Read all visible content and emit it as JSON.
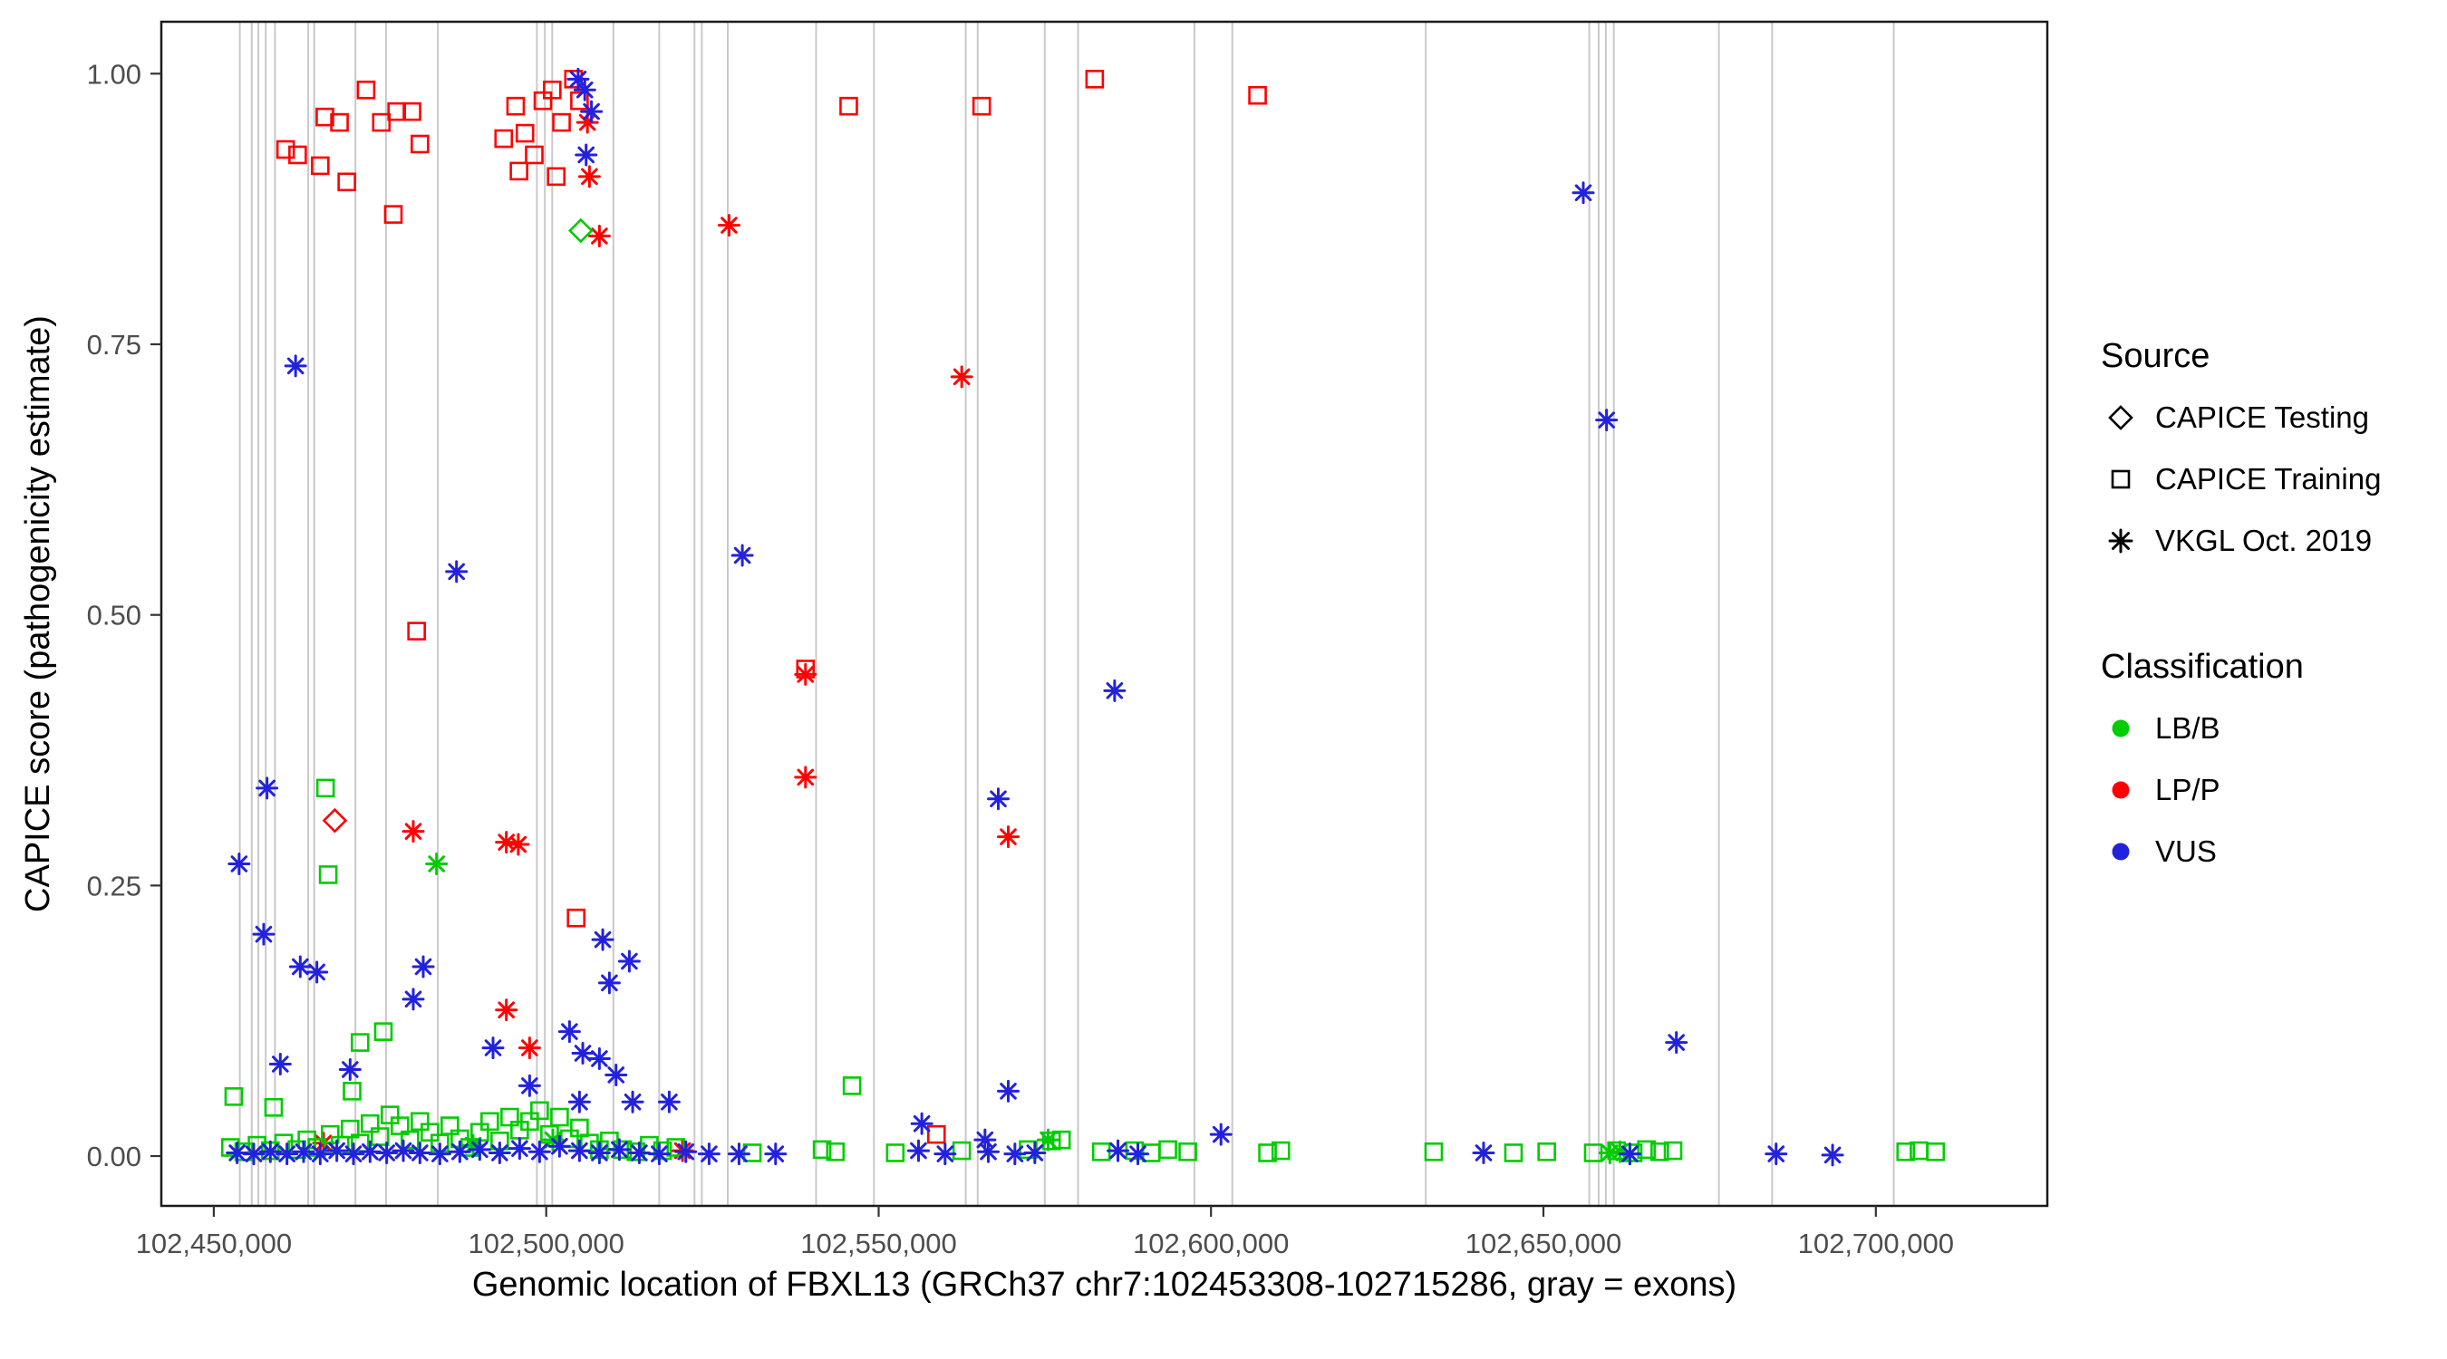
{
  "chart_data": {
    "type": "scatter",
    "title": "",
    "xlabel": "Genomic location of FBXL13 (GRCh37 chr7:102453308-102715286, gray = exons)",
    "ylabel": "CAPICE score (pathogenicity estimate)",
    "xlim": [
      102442100,
      102725800
    ],
    "ylim": [
      -0.046,
      1.048
    ],
    "x_ticks": [
      102450000,
      102500000,
      102550000,
      102600000,
      102650000,
      102700000
    ],
    "x_tick_labels": [
      "102,450,000",
      "102,500,000",
      "102,550,000",
      "102,600,000",
      "102,650,000",
      "102,700,000"
    ],
    "y_ticks": [
      0,
      0.25,
      0.5,
      0.75,
      1
    ],
    "y_tick_labels": [
      "0.00",
      "0.25",
      "0.50",
      "0.75",
      "1.00"
    ],
    "grid": false,
    "legend_position": "right",
    "exon_note": "gray vertical lines = exons",
    "exon_color": "#C9C9C9",
    "colors": {
      "g": "#00CC00",
      "r": "#FF0000",
      "b": "#2222DD"
    },
    "class_codes": {
      "g": "LB/B",
      "r": "LP/P",
      "b": "VUS"
    },
    "shape_codes": {
      "s": "CAPICE Training",
      "d": "CAPICE Testing",
      "a": "VKGL Oct. 2019"
    },
    "point_format": [
      "genomic_position",
      "capice_score",
      "shape_code",
      "classification_code"
    ],
    "exons": [
      102453900,
      102455700,
      102456700,
      102457800,
      102459200,
      102464200,
      102465100,
      102471300,
      102475900,
      102483700,
      102498600,
      102499800,
      102500900,
      102510100,
      102517000,
      102522300,
      102523400,
      102527300,
      102540600,
      102549300,
      102563100,
      102564900,
      102575000,
      102580000,
      102597500,
      102603200,
      102632300,
      102656900,
      102658300,
      102659400,
      102660600,
      102676400,
      102684400,
      102702700
    ],
    "points": [
      [
        102460800,
        0.93,
        "s",
        "r"
      ],
      [
        102462600,
        0.925,
        "s",
        "r"
      ],
      [
        102466700,
        0.96,
        "s",
        "r"
      ],
      [
        102468900,
        0.955,
        "s",
        "r"
      ],
      [
        102466000,
        0.915,
        "s",
        "r"
      ],
      [
        102470000,
        0.9,
        "s",
        "r"
      ],
      [
        102472900,
        0.985,
        "s",
        "r"
      ],
      [
        102475200,
        0.955,
        "s",
        "r"
      ],
      [
        102477500,
        0.965,
        "s",
        "r"
      ],
      [
        102479800,
        0.965,
        "s",
        "r"
      ],
      [
        102481000,
        0.935,
        "s",
        "r"
      ],
      [
        102477000,
        0.87,
        "s",
        "r"
      ],
      [
        102480500,
        0.485,
        "s",
        "r"
      ],
      [
        102493600,
        0.94,
        "s",
        "r"
      ],
      [
        102495400,
        0.97,
        "s",
        "r"
      ],
      [
        102496800,
        0.945,
        "s",
        "r"
      ],
      [
        102498200,
        0.925,
        "s",
        "r"
      ],
      [
        102495900,
        0.91,
        "s",
        "r"
      ],
      [
        102499500,
        0.975,
        "s",
        "r"
      ],
      [
        102500900,
        0.985,
        "s",
        "r"
      ],
      [
        102501500,
        0.905,
        "s",
        "r"
      ],
      [
        102502300,
        0.955,
        "s",
        "r"
      ],
      [
        102504100,
        0.995,
        "s",
        "r"
      ],
      [
        102505000,
        0.975,
        "s",
        "r"
      ],
      [
        102504500,
        0.22,
        "s",
        "r"
      ],
      [
        102545500,
        0.97,
        "s",
        "r"
      ],
      [
        102565500,
        0.97,
        "s",
        "r"
      ],
      [
        102582500,
        0.995,
        "s",
        "r"
      ],
      [
        102607000,
        0.98,
        "s",
        "r"
      ],
      [
        102539000,
        0.45,
        "s",
        "r"
      ],
      [
        102558700,
        0.02,
        "s",
        "r"
      ],
      [
        102506500,
        0.905,
        "a",
        "r"
      ],
      [
        102508000,
        0.85,
        "a",
        "r"
      ],
      [
        102506200,
        0.955,
        "a",
        "r"
      ],
      [
        102527500,
        0.86,
        "a",
        "r"
      ],
      [
        102539000,
        0.445,
        "a",
        "r"
      ],
      [
        102539000,
        0.35,
        "a",
        "r"
      ],
      [
        102562500,
        0.72,
        "a",
        "r"
      ],
      [
        102569500,
        0.295,
        "a",
        "r"
      ],
      [
        102480000,
        0.3,
        "a",
        "r"
      ],
      [
        102494000,
        0.29,
        "a",
        "r"
      ],
      [
        102495800,
        0.288,
        "a",
        "r"
      ],
      [
        102494000,
        0.135,
        "a",
        "r"
      ],
      [
        102497500,
        0.1,
        "a",
        "r"
      ],
      [
        102466500,
        0.012,
        "a",
        "r"
      ],
      [
        102520500,
        0.005,
        "a",
        "r"
      ],
      [
        102468200,
        0.31,
        "d",
        "r"
      ],
      [
        102505200,
        0.855,
        "d",
        "g"
      ],
      [
        102483500,
        0.27,
        "a",
        "g"
      ],
      [
        102489000,
        0.01,
        "a",
        "g"
      ],
      [
        102501000,
        0.015,
        "a",
        "g"
      ],
      [
        102575500,
        0.015,
        "a",
        "g"
      ],
      [
        102660000,
        0.003,
        "a",
        "g"
      ],
      [
        102661500,
        0.004,
        "a",
        "g"
      ],
      [
        102663000,
        0.002,
        "a",
        "g"
      ],
      [
        102466800,
        0.34,
        "s",
        "g"
      ],
      [
        102467200,
        0.26,
        "s",
        "g"
      ],
      [
        102472000,
        0.105,
        "s",
        "g"
      ],
      [
        102475500,
        0.115,
        "s",
        "g"
      ],
      [
        102470800,
        0.06,
        "s",
        "g"
      ],
      [
        102453000,
        0.055,
        "s",
        "g"
      ],
      [
        102459000,
        0.045,
        "s",
        "g"
      ],
      [
        102546000,
        0.065,
        "s",
        "g"
      ],
      [
        102577500,
        0.015,
        "s",
        "g"
      ],
      [
        102531000,
        0.003,
        "s",
        "g"
      ],
      [
        102452500,
        0.008,
        "s",
        "g"
      ],
      [
        102454500,
        0.004,
        "s",
        "g"
      ],
      [
        102456500,
        0.01,
        "s",
        "g"
      ],
      [
        102458500,
        0.005,
        "s",
        "g"
      ],
      [
        102460500,
        0.012,
        "s",
        "g"
      ],
      [
        102462500,
        0.006,
        "s",
        "g"
      ],
      [
        102464000,
        0.015,
        "s",
        "g"
      ],
      [
        102465500,
        0.008,
        "s",
        "g"
      ],
      [
        102467500,
        0.02,
        "s",
        "g"
      ],
      [
        102469000,
        0.01,
        "s",
        "g"
      ],
      [
        102470500,
        0.025,
        "s",
        "g"
      ],
      [
        102472000,
        0.012,
        "s",
        "g"
      ],
      [
        102473500,
        0.03,
        "s",
        "g"
      ],
      [
        102475000,
        0.018,
        "s",
        "g"
      ],
      [
        102476500,
        0.038,
        "s",
        "g"
      ],
      [
        102478000,
        0.028,
        "s",
        "g"
      ],
      [
        102479500,
        0.015,
        "s",
        "g"
      ],
      [
        102481000,
        0.032,
        "s",
        "g"
      ],
      [
        102482500,
        0.022,
        "s",
        "g"
      ],
      [
        102484000,
        0.012,
        "s",
        "g"
      ],
      [
        102485500,
        0.028,
        "s",
        "g"
      ],
      [
        102487000,
        0.016,
        "s",
        "g"
      ],
      [
        102488500,
        0.008,
        "s",
        "g"
      ],
      [
        102490000,
        0.022,
        "s",
        "g"
      ],
      [
        102491500,
        0.032,
        "s",
        "g"
      ],
      [
        102493000,
        0.014,
        "s",
        "g"
      ],
      [
        102494500,
        0.036,
        "s",
        "g"
      ],
      [
        102496000,
        0.024,
        "s",
        "g"
      ],
      [
        102497500,
        0.032,
        "s",
        "g"
      ],
      [
        102499000,
        0.042,
        "s",
        "g"
      ],
      [
        102500500,
        0.02,
        "s",
        "g"
      ],
      [
        102502000,
        0.036,
        "s",
        "g"
      ],
      [
        102503500,
        0.016,
        "s",
        "g"
      ],
      [
        102505000,
        0.026,
        "s",
        "g"
      ],
      [
        102506500,
        0.012,
        "s",
        "g"
      ],
      [
        102508000,
        0.006,
        "s",
        "g"
      ],
      [
        102509500,
        0.014,
        "s",
        "g"
      ],
      [
        102511500,
        0.006,
        "s",
        "g"
      ],
      [
        102513500,
        0.004,
        "s",
        "g"
      ],
      [
        102515500,
        0.01,
        "s",
        "g"
      ],
      [
        102517500,
        0.005,
        "s",
        "g"
      ],
      [
        102519500,
        0.008,
        "s",
        "g"
      ],
      [
        102541500,
        0.006,
        "s",
        "g"
      ],
      [
        102543500,
        0.004,
        "s",
        "g"
      ],
      [
        102552500,
        0.003,
        "s",
        "g"
      ],
      [
        102562500,
        0.005,
        "s",
        "g"
      ],
      [
        102572500,
        0.006,
        "s",
        "g"
      ],
      [
        102576000,
        0.014,
        "s",
        "g"
      ],
      [
        102583500,
        0.004,
        "s",
        "g"
      ],
      [
        102588500,
        0.005,
        "s",
        "g"
      ],
      [
        102591000,
        0.003,
        "s",
        "g"
      ],
      [
        102593500,
        0.006,
        "s",
        "g"
      ],
      [
        102596500,
        0.004,
        "s",
        "g"
      ],
      [
        102608500,
        0.003,
        "s",
        "g"
      ],
      [
        102610500,
        0.005,
        "s",
        "g"
      ],
      [
        102633500,
        0.004,
        "s",
        "g"
      ],
      [
        102645500,
        0.003,
        "s",
        "g"
      ],
      [
        102650500,
        0.004,
        "s",
        "g"
      ],
      [
        102657500,
        0.003,
        "s",
        "g"
      ],
      [
        102661000,
        0.005,
        "s",
        "g"
      ],
      [
        102663500,
        0.003,
        "s",
        "g"
      ],
      [
        102665500,
        0.006,
        "s",
        "g"
      ],
      [
        102667500,
        0.004,
        "s",
        "g"
      ],
      [
        102669500,
        0.005,
        "s",
        "g"
      ],
      [
        102704500,
        0.004,
        "s",
        "g"
      ],
      [
        102706500,
        0.005,
        "s",
        "g"
      ],
      [
        102709000,
        0.004,
        "s",
        "g"
      ],
      [
        102462300,
        0.73,
        "a",
        "b"
      ],
      [
        102486500,
        0.54,
        "a",
        "b"
      ],
      [
        102529500,
        0.555,
        "a",
        "b"
      ],
      [
        102585500,
        0.43,
        "a",
        "b"
      ],
      [
        102568000,
        0.33,
        "a",
        "b"
      ],
      [
        102656000,
        0.89,
        "a",
        "b"
      ],
      [
        102659500,
        0.68,
        "a",
        "b"
      ],
      [
        102670000,
        0.105,
        "a",
        "b"
      ],
      [
        102453800,
        0.27,
        "a",
        "b"
      ],
      [
        102458000,
        0.34,
        "a",
        "b"
      ],
      [
        102457500,
        0.205,
        "a",
        "b"
      ],
      [
        102463000,
        0.175,
        "a",
        "b"
      ],
      [
        102465500,
        0.17,
        "a",
        "b"
      ],
      [
        102481500,
        0.175,
        "a",
        "b"
      ],
      [
        102480000,
        0.145,
        "a",
        "b"
      ],
      [
        102508500,
        0.2,
        "a",
        "b"
      ],
      [
        102512500,
        0.18,
        "a",
        "b"
      ],
      [
        102509500,
        0.16,
        "a",
        "b"
      ],
      [
        102503500,
        0.115,
        "a",
        "b"
      ],
      [
        102505500,
        0.095,
        "a",
        "b"
      ],
      [
        102508000,
        0.09,
        "a",
        "b"
      ],
      [
        102510500,
        0.075,
        "a",
        "b"
      ],
      [
        102497500,
        0.065,
        "a",
        "b"
      ],
      [
        102505000,
        0.05,
        "a",
        "b"
      ],
      [
        102513000,
        0.05,
        "a",
        "b"
      ],
      [
        102518500,
        0.05,
        "a",
        "b"
      ],
      [
        102460000,
        0.085,
        "a",
        "b"
      ],
      [
        102470500,
        0.08,
        "a",
        "b"
      ],
      [
        102492000,
        0.1,
        "a",
        "b"
      ],
      [
        102569500,
        0.06,
        "a",
        "b"
      ],
      [
        102556500,
        0.03,
        "a",
        "b"
      ],
      [
        102601500,
        0.02,
        "a",
        "b"
      ],
      [
        102566000,
        0.015,
        "a",
        "b"
      ],
      [
        102504800,
        0.995,
        "a",
        "b"
      ],
      [
        102505800,
        0.985,
        "a",
        "b"
      ],
      [
        102506800,
        0.965,
        "a",
        "b"
      ],
      [
        102506000,
        0.925,
        "a",
        "b"
      ],
      [
        102453500,
        0.003,
        "a",
        "b"
      ],
      [
        102456000,
        0.002,
        "a",
        "b"
      ],
      [
        102458500,
        0.004,
        "a",
        "b"
      ],
      [
        102461000,
        0.002,
        "a",
        "b"
      ],
      [
        102463500,
        0.004,
        "a",
        "b"
      ],
      [
        102466000,
        0.002,
        "a",
        "b"
      ],
      [
        102468500,
        0.005,
        "a",
        "b"
      ],
      [
        102471000,
        0.002,
        "a",
        "b"
      ],
      [
        102473500,
        0.004,
        "a",
        "b"
      ],
      [
        102476000,
        0.003,
        "a",
        "b"
      ],
      [
        102478500,
        0.005,
        "a",
        "b"
      ],
      [
        102481000,
        0.003,
        "a",
        "b"
      ],
      [
        102484000,
        0.002,
        "a",
        "b"
      ],
      [
        102487000,
        0.004,
        "a",
        "b"
      ],
      [
        102490000,
        0.006,
        "a",
        "b"
      ],
      [
        102493000,
        0.003,
        "a",
        "b"
      ],
      [
        102496000,
        0.007,
        "a",
        "b"
      ],
      [
        102499000,
        0.004,
        "a",
        "b"
      ],
      [
        102502000,
        0.009,
        "a",
        "b"
      ],
      [
        102505000,
        0.005,
        "a",
        "b"
      ],
      [
        102508000,
        0.003,
        "a",
        "b"
      ],
      [
        102511000,
        0.006,
        "a",
        "b"
      ],
      [
        102514000,
        0.003,
        "a",
        "b"
      ],
      [
        102517000,
        0.002,
        "a",
        "b"
      ],
      [
        102521000,
        0.004,
        "a",
        "b"
      ],
      [
        102524500,
        0.002,
        "a",
        "b"
      ],
      [
        102529000,
        0.002,
        "a",
        "b"
      ],
      [
        102534500,
        0.002,
        "a",
        "b"
      ],
      [
        102556000,
        0.005,
        "a",
        "b"
      ],
      [
        102560000,
        0.002,
        "a",
        "b"
      ],
      [
        102566500,
        0.004,
        "a",
        "b"
      ],
      [
        102570500,
        0.002,
        "a",
        "b"
      ],
      [
        102573500,
        0.003,
        "a",
        "b"
      ],
      [
        102586000,
        0.005,
        "a",
        "b"
      ],
      [
        102589000,
        0.002,
        "a",
        "b"
      ],
      [
        102641000,
        0.003,
        "a",
        "b"
      ],
      [
        102663000,
        0.002,
        "a",
        "b"
      ],
      [
        102685000,
        0.002,
        "a",
        "b"
      ],
      [
        102693500,
        0.001,
        "a",
        "b"
      ]
    ]
  },
  "legend": {
    "source": {
      "title": "Source",
      "items": [
        {
          "label": "CAPICE Testing",
          "shape": "diamond"
        },
        {
          "label": "CAPICE Training",
          "shape": "square"
        },
        {
          "label": "VKGL Oct. 2019",
          "shape": "asterisk"
        }
      ]
    },
    "classification": {
      "title": "Classification",
      "items": [
        {
          "label": "LB/B",
          "color": "#00CC00"
        },
        {
          "label": "LP/P",
          "color": "#FF0000"
        },
        {
          "label": "VUS",
          "color": "#2222DD"
        }
      ]
    }
  }
}
